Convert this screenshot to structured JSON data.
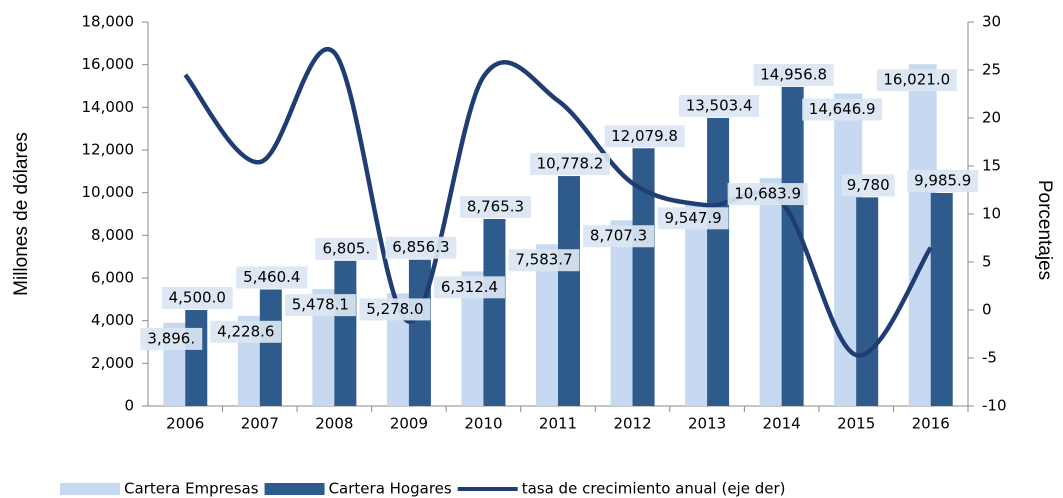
{
  "chart_data": {
    "type": "bar-line",
    "categories": [
      "2006",
      "2007",
      "2008",
      "2009",
      "2010",
      "2011",
      "2012",
      "2013",
      "2014",
      "2015",
      "2016"
    ],
    "series": [
      {
        "name": "Cartera Empresas",
        "color": "#c6d9f1",
        "axis": "y",
        "values": [
          3896,
          4228.6,
          5478.1,
          5278.0,
          6312.4,
          7583.7,
          8707.3,
          9547.9,
          10683.9,
          14646.9,
          16021.0
        ],
        "value_labels": [
          "3,896.",
          "4,228.6",
          "5,478.1",
          "5,278.0",
          "6,312.4",
          "7,583.7",
          "8,707.3",
          "9,547.9",
          "10,683.9",
          "14,646.9",
          "16,021.0"
        ]
      },
      {
        "name": "Cartera Hogares",
        "color": "#2e5a8c",
        "axis": "y",
        "values": [
          4500.0,
          5460.4,
          6805,
          6856.3,
          8765.3,
          10778.2,
          12079.8,
          13503.4,
          14956.8,
          9780,
          9985.9
        ],
        "value_labels": [
          "4,500.0",
          "5,460.4",
          "6,805.",
          "6,856.3",
          "8,765.3",
          "10,778.2",
          "12,079.8",
          "13,503.4",
          "14,956.8",
          "9,780",
          "9,985.9"
        ]
      },
      {
        "name": "tasa de crecimiento anual (eje der)",
        "color": "#1f3d73",
        "axis": "y2",
        "values": [
          24.5,
          15.4,
          26.8,
          -1.2,
          24.3,
          21.8,
          13.2,
          10.9,
          11.2,
          -4.7,
          6.5
        ]
      }
    ],
    "ylabel": "Millones de dólares",
    "y2label": "Porcentajes",
    "ylim": [
      0,
      18000
    ],
    "yticks": [
      0,
      {
        "value": 2000,
        "label": "2,000"
      },
      {
        "value": 4000,
        "label": "4,000"
      },
      {
        "value": 6000,
        "label": "6,000"
      },
      {
        "value": 8000,
        "label": "8,000"
      },
      {
        "value": 10000,
        "label": "10,000"
      },
      {
        "value": 12000,
        "label": "12,000"
      },
      {
        "value": 14000,
        "label": "14,000"
      },
      {
        "value": 16000,
        "label": "16,000"
      },
      {
        "value": 18000,
        "label": "18,000"
      }
    ],
    "y2lim": [
      -10,
      30
    ],
    "y2ticks": [
      -10,
      -5,
      0,
      5,
      10,
      15,
      20,
      25,
      30
    ],
    "grid": false
  }
}
